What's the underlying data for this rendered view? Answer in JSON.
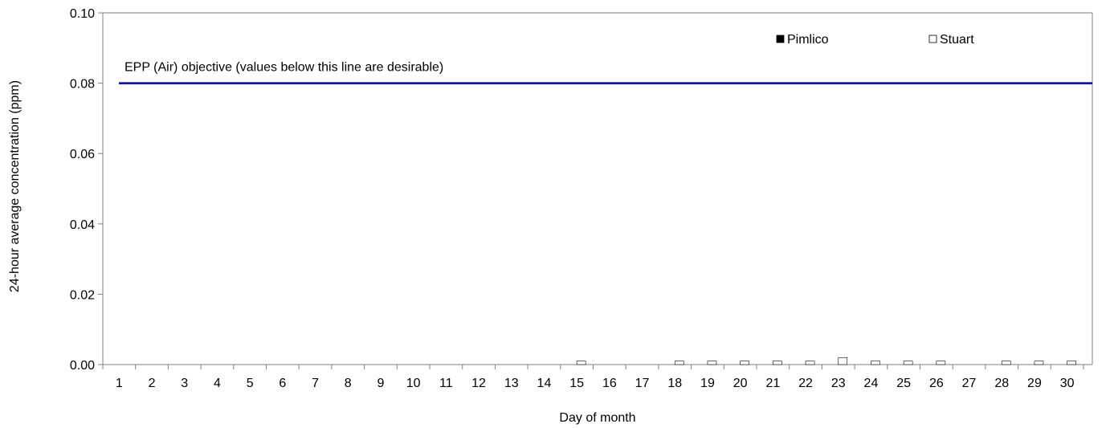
{
  "chart_data": {
    "type": "bar",
    "ylabel": "24-hour average concentration (ppm)",
    "xlabel": "Day of month",
    "ylim": [
      0,
      0.1
    ],
    "yticks": [
      "0.00",
      "0.02",
      "0.04",
      "0.06",
      "0.08",
      "0.10"
    ],
    "categories": [
      "1",
      "2",
      "3",
      "4",
      "5",
      "6",
      "7",
      "8",
      "9",
      "10",
      "11",
      "12",
      "13",
      "14",
      "15",
      "16",
      "17",
      "18",
      "19",
      "20",
      "21",
      "22",
      "23",
      "24",
      "25",
      "26",
      "27",
      "28",
      "29",
      "30"
    ],
    "series": [
      {
        "name": "Pimlico",
        "color": "#000000",
        "values": [
          null,
          null,
          null,
          null,
          null,
          null,
          null,
          null,
          null,
          null,
          null,
          null,
          null,
          null,
          null,
          null,
          null,
          null,
          null,
          null,
          null,
          null,
          null,
          null,
          null,
          null,
          null,
          null,
          null,
          null
        ]
      },
      {
        "name": "Stuart",
        "color": "#ffffff",
        "values": [
          0,
          0,
          0,
          0,
          0,
          0,
          0,
          0,
          0,
          0,
          0,
          0,
          0,
          0,
          0.001,
          0,
          0,
          0.001,
          0.001,
          0.001,
          0.001,
          0.001,
          0.002,
          0.001,
          0.001,
          0.001,
          0,
          0.001,
          0.001,
          0.001
        ]
      }
    ],
    "reference_line": {
      "value": 0.08,
      "label": "EPP (Air) objective (values below this line are desirable)",
      "color": "#0000cc"
    },
    "legend": "top-right",
    "grid": false
  }
}
